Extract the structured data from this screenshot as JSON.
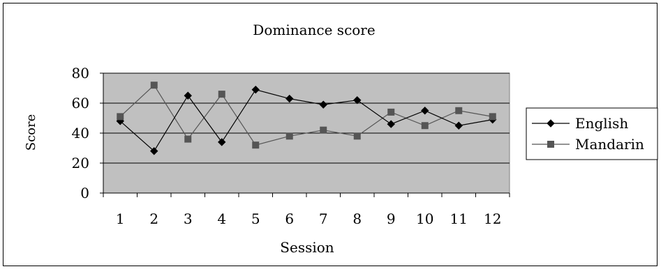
{
  "chart_data": {
    "type": "line",
    "title": "Dominance score",
    "xlabel": "Session",
    "ylabel": "Score",
    "x": [
      "1",
      "2",
      "3",
      "4",
      "5",
      "6",
      "7",
      "8",
      "9",
      "10",
      "11",
      "12"
    ],
    "ylim": [
      0,
      80
    ],
    "yticks": [
      "0",
      "20",
      "40",
      "60",
      "80"
    ],
    "grid": true,
    "legend_position": "right",
    "plot_background": "#c0c0c0",
    "series": [
      {
        "name": "English",
        "marker": "diamond",
        "color": "#000000",
        "values": [
          48,
          28,
          65,
          34,
          69,
          63,
          59,
          62,
          46,
          55,
          45,
          49
        ]
      },
      {
        "name": "Mandarin",
        "marker": "square",
        "color": "#555555",
        "values": [
          51,
          72,
          36,
          66,
          32,
          38,
          42,
          38,
          54,
          45,
          55,
          51
        ]
      }
    ]
  }
}
